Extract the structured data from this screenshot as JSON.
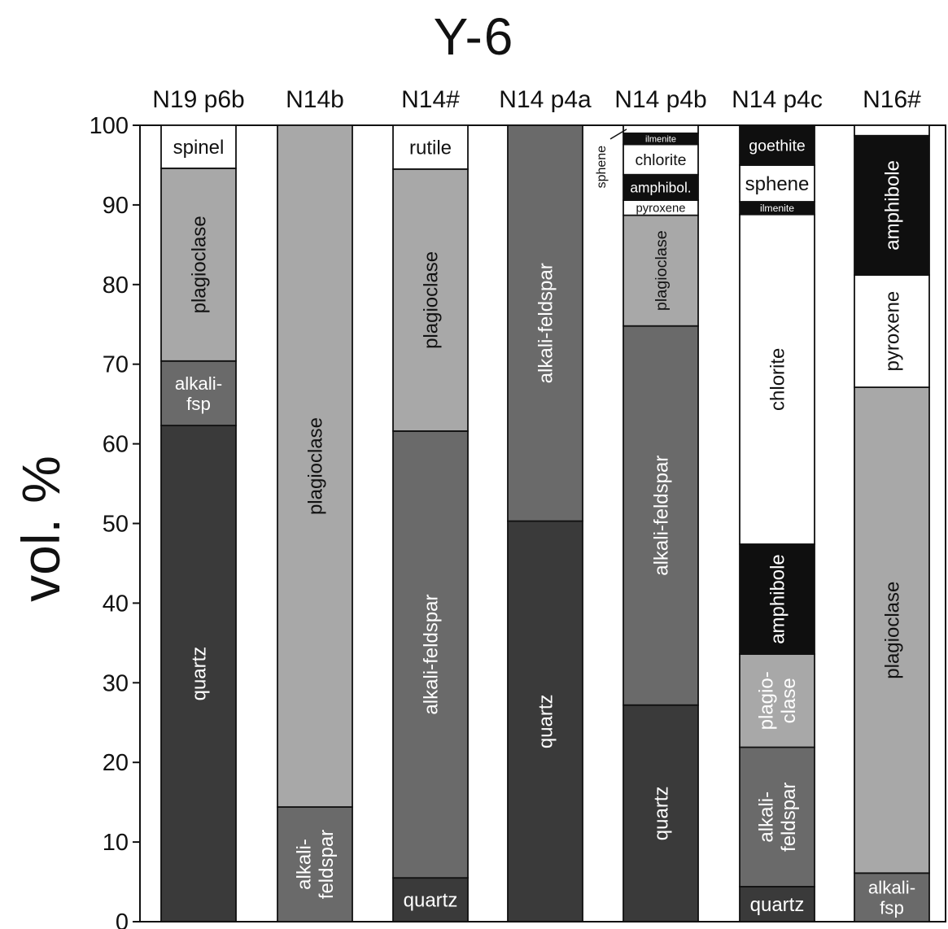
{
  "chart_data": {
    "type": "bar",
    "stacked": true,
    "title": "Y-6",
    "ylabel": "vol. %",
    "xlabel": "",
    "ylim": [
      0,
      100
    ],
    "yticks": [
      0,
      10,
      20,
      30,
      40,
      50,
      60,
      70,
      80,
      90,
      100
    ],
    "grid": false,
    "colors": {
      "quartz": "#3a3a3a",
      "alkali-feldspar": "#6a6a6a",
      "plagioclase": "#a8a8a8",
      "opaque_dark": "#0f0f0f",
      "white": "#ffffff",
      "frame": "#111111"
    },
    "categories": [
      "N19 p6b",
      "N14b",
      "N14#",
      "N14 p4a",
      "N14 p4b",
      "N14 p4c",
      "N16#"
    ],
    "bars": [
      {
        "category": "N19 p6b",
        "segments": [
          {
            "mineral": "quartz",
            "label": "quartz",
            "from": 0,
            "to": 62.3,
            "fill": "#3a3a3a",
            "text": "#ffffff",
            "orient": "v"
          },
          {
            "mineral": "alkali-feldspar",
            "label": "alkali-\nfsp",
            "from": 62.3,
            "to": 70.4,
            "fill": "#6a6a6a",
            "text": "#ffffff",
            "orient": "h"
          },
          {
            "mineral": "plagioclase",
            "label": "plagioclase",
            "from": 70.4,
            "to": 94.6,
            "fill": "#a8a8a8",
            "text": "#111111",
            "orient": "v"
          },
          {
            "mineral": "spinel",
            "label": "spinel",
            "from": 94.6,
            "to": 100,
            "fill": "#ffffff",
            "text": "#111111",
            "orient": "h"
          }
        ]
      },
      {
        "category": "N14b",
        "segments": [
          {
            "mineral": "alkali-feldspar",
            "label": "alkali-\nfeldspar",
            "from": 0,
            "to": 14.4,
            "fill": "#6a6a6a",
            "text": "#ffffff",
            "orient": "v"
          },
          {
            "mineral": "plagioclase",
            "label": "plagioclase",
            "from": 14.4,
            "to": 100,
            "fill": "#a8a8a8",
            "text": "#111111",
            "orient": "v"
          }
        ]
      },
      {
        "category": "N14#",
        "segments": [
          {
            "mineral": "quartz",
            "label": "quartz",
            "from": 0,
            "to": 5.5,
            "fill": "#3a3a3a",
            "text": "#ffffff",
            "orient": "h"
          },
          {
            "mineral": "alkali-feldspar",
            "label": "alkali-feldspar",
            "from": 5.5,
            "to": 61.6,
            "fill": "#6a6a6a",
            "text": "#ffffff",
            "orient": "v"
          },
          {
            "mineral": "plagioclase",
            "label": "plagioclase",
            "from": 61.6,
            "to": 94.5,
            "fill": "#a8a8a8",
            "text": "#111111",
            "orient": "v"
          },
          {
            "mineral": "rutile",
            "label": "rutile",
            "from": 94.5,
            "to": 100,
            "fill": "#ffffff",
            "text": "#111111",
            "orient": "h"
          }
        ]
      },
      {
        "category": "N14 p4a",
        "segments": [
          {
            "mineral": "quartz",
            "label": "quartz",
            "from": 0,
            "to": 50.3,
            "fill": "#3a3a3a",
            "text": "#ffffff",
            "orient": "v"
          },
          {
            "mineral": "alkali-feldspar",
            "label": "alkali-feldspar",
            "from": 50.3,
            "to": 100,
            "fill": "#6a6a6a",
            "text": "#ffffff",
            "orient": "v"
          }
        ]
      },
      {
        "category": "N14 p4b",
        "segments": [
          {
            "mineral": "quartz",
            "label": "quartz",
            "from": 0,
            "to": 27.2,
            "fill": "#3a3a3a",
            "text": "#ffffff",
            "orient": "v"
          },
          {
            "mineral": "alkali-feldspar",
            "label": "alkali-feldspar",
            "from": 27.2,
            "to": 74.8,
            "fill": "#6a6a6a",
            "text": "#ffffff",
            "orient": "v"
          },
          {
            "mineral": "plagioclase",
            "label": "plagioclase",
            "from": 74.8,
            "to": 88.7,
            "fill": "#a8a8a8",
            "text": "#111111",
            "orient": "v"
          },
          {
            "mineral": "pyroxene",
            "label": "pyroxene",
            "from": 88.7,
            "to": 90.6,
            "fill": "#ffffff",
            "text": "#111111",
            "orient": "h"
          },
          {
            "mineral": "amphibole",
            "label": "amphibol.",
            "from": 90.6,
            "to": 93.8,
            "fill": "#0f0f0f",
            "text": "#ffffff",
            "orient": "h"
          },
          {
            "mineral": "chlorite",
            "label": "chlorite",
            "from": 93.8,
            "to": 97.6,
            "fill": "#ffffff",
            "text": "#111111",
            "orient": "h"
          },
          {
            "mineral": "ilmenite",
            "label": "ilmenite",
            "from": 97.6,
            "to": 99.0,
            "fill": "#0f0f0f",
            "text": "#ffffff",
            "orient": "h"
          },
          {
            "mineral": "sphene",
            "label": "",
            "from": 99.0,
            "to": 100,
            "fill": "#ffffff",
            "text": "#111111",
            "orient": "h"
          }
        ],
        "callout": {
          "label": "sphene",
          "value": 99.5
        }
      },
      {
        "category": "N14 p4c",
        "segments": [
          {
            "mineral": "quartz",
            "label": "quartz",
            "from": 0,
            "to": 4.4,
            "fill": "#3a3a3a",
            "text": "#ffffff",
            "orient": "h"
          },
          {
            "mineral": "alkali-feldspar",
            "label": "alkali-\nfeldspar",
            "from": 4.4,
            "to": 21.9,
            "fill": "#6a6a6a",
            "text": "#ffffff",
            "orient": "v"
          },
          {
            "mineral": "plagioclase",
            "label": "plagio-\nclase",
            "from": 21.9,
            "to": 33.6,
            "fill": "#a8a8a8",
            "text": "#ffffff",
            "orient": "v"
          },
          {
            "mineral": "amphibole",
            "label": "amphibole",
            "from": 33.6,
            "to": 47.4,
            "fill": "#0f0f0f",
            "text": "#ffffff",
            "orient": "v"
          },
          {
            "mineral": "chlorite",
            "label": "chlorite",
            "from": 47.4,
            "to": 88.8,
            "fill": "#ffffff",
            "text": "#111111",
            "orient": "v"
          },
          {
            "mineral": "ilmenite",
            "label": "ilmenite",
            "from": 88.8,
            "to": 90.4,
            "fill": "#0f0f0f",
            "text": "#ffffff",
            "orient": "h"
          },
          {
            "mineral": "sphene",
            "label": "sphene",
            "from": 90.4,
            "to": 95.0,
            "fill": "#ffffff",
            "text": "#111111",
            "orient": "h"
          },
          {
            "mineral": "goethite",
            "label": "goethite",
            "from": 95.0,
            "to": 100,
            "fill": "#0f0f0f",
            "text": "#ffffff",
            "orient": "h"
          }
        ]
      },
      {
        "category": "N16#",
        "segments": [
          {
            "mineral": "alkali-feldspar",
            "label": "alkali-\nfsp",
            "from": 0,
            "to": 6.1,
            "fill": "#6a6a6a",
            "text": "#ffffff",
            "orient": "h"
          },
          {
            "mineral": "plagioclase",
            "label": "plagioclase",
            "from": 6.1,
            "to": 67.1,
            "fill": "#a8a8a8",
            "text": "#111111",
            "orient": "v"
          },
          {
            "mineral": "pyroxene",
            "label": "pyroxene",
            "from": 67.1,
            "to": 81.2,
            "fill": "#ffffff",
            "text": "#111111",
            "orient": "v"
          },
          {
            "mineral": "amphibole",
            "label": "amphibole",
            "from": 81.2,
            "to": 98.7,
            "fill": "#0f0f0f",
            "text": "#ffffff",
            "orient": "v"
          },
          {
            "mineral": "unlabeled",
            "label": "",
            "from": 98.7,
            "to": 100,
            "fill": "#ffffff",
            "text": "#111111",
            "orient": "h"
          }
        ]
      }
    ]
  }
}
